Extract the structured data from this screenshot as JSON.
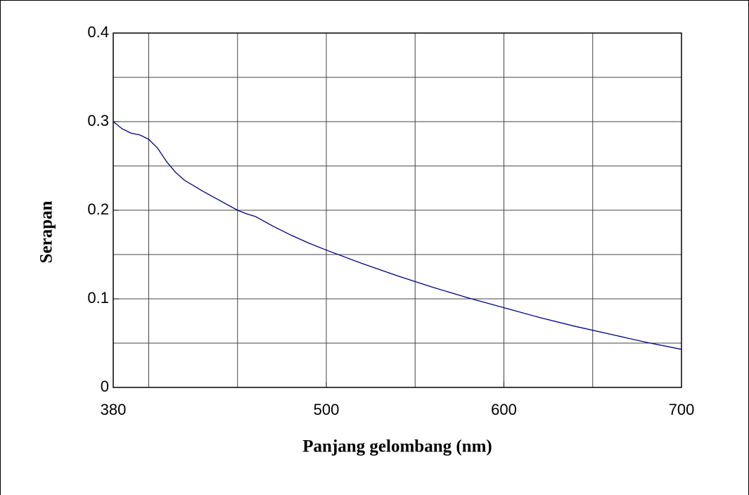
{
  "chart_data": {
    "type": "line",
    "x_label": "Panjang gelombang (nm)",
    "y_label": "Serapan",
    "x": [
      380,
      385,
      390,
      395,
      400,
      405,
      410,
      415,
      420,
      430,
      440,
      450,
      455,
      460,
      470,
      480,
      490,
      500,
      520,
      540,
      560,
      580,
      600,
      620,
      640,
      660,
      680,
      700
    ],
    "series": [
      {
        "name": "Serapan",
        "color": "#000080",
        "values": [
          0.3,
          0.292,
          0.287,
          0.285,
          0.28,
          0.27,
          0.255,
          0.243,
          0.234,
          0.222,
          0.211,
          0.2,
          0.196,
          0.193,
          0.182,
          0.172,
          0.163,
          0.155,
          0.14,
          0.126,
          0.113,
          0.101,
          0.09,
          0.079,
          0.069,
          0.06,
          0.051,
          0.043
        ]
      }
    ],
    "xlim": [
      380,
      700
    ],
    "ylim": [
      0,
      0.4
    ],
    "xticks": [
      380,
      500,
      600,
      700
    ],
    "yticks": [
      0,
      0.1,
      0.2,
      0.3,
      0.4
    ],
    "xgrid": [
      400,
      450,
      500,
      550,
      600,
      650
    ],
    "ygrid": [
      0.05,
      0.1,
      0.15,
      0.2,
      0.25,
      0.3,
      0.35
    ],
    "grid": true
  }
}
